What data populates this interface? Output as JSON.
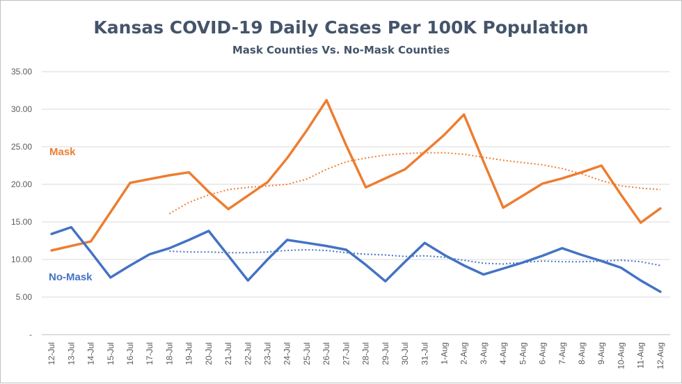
{
  "chart_data": {
    "type": "line",
    "title": "Kansas COVID-19 Daily Cases Per 100K Population",
    "subtitle": "Mask Counties Vs. No-Mask Counties",
    "xlabel": "",
    "ylabel": "",
    "ylim": [
      0,
      35
    ],
    "y_ticks": [
      "-",
      "5.00",
      "10.00",
      "15.00",
      "20.00",
      "25.00",
      "30.00",
      "35.00"
    ],
    "grid": "horizontal",
    "categories": [
      "12-Jul",
      "13-Jul",
      "14-Jul",
      "15-Jul",
      "16-Jul",
      "17-Jul",
      "18-Jul",
      "19-Jul",
      "20-Jul",
      "21-Jul",
      "22-Jul",
      "23-Jul",
      "24-Jul",
      "25-Jul",
      "26-Jul",
      "27-Jul",
      "28-Jul",
      "29-Jul",
      "30-Jul",
      "31-Jul",
      "1-Aug",
      "2-Aug",
      "3-Aug",
      "4-Aug",
      "5-Aug",
      "6-Aug",
      "7-Aug",
      "8-Aug",
      "9-Aug",
      "10-Aug",
      "11-Aug",
      "12-Aug"
    ],
    "series": [
      {
        "name": "Mask",
        "color": "#ed7d31",
        "values": [
          11.2,
          11.8,
          12.4,
          16.3,
          20.2,
          20.7,
          21.2,
          21.6,
          19.0,
          16.7,
          18.5,
          20.3,
          23.5,
          27.2,
          31.2,
          25.2,
          19.6,
          20.8,
          22.0,
          24.3,
          26.6,
          29.3,
          23.0,
          16.9,
          18.5,
          20.1,
          20.8,
          21.6,
          22.5,
          18.6,
          14.9,
          16.8
        ],
        "trend": [
          null,
          null,
          null,
          null,
          null,
          null,
          16.1,
          17.6,
          18.6,
          19.3,
          19.6,
          19.8,
          20.0,
          20.7,
          22.0,
          23.0,
          23.5,
          23.9,
          24.1,
          24.2,
          24.2,
          24.0,
          23.6,
          23.2,
          22.9,
          22.6,
          22.1,
          21.4,
          20.5,
          19.8,
          19.5,
          19.3
        ]
      },
      {
        "name": "No-Mask",
        "color": "#4472c4",
        "values": [
          13.4,
          14.3,
          11.0,
          7.6,
          9.2,
          10.7,
          11.5,
          12.6,
          13.8,
          10.5,
          7.2,
          10.0,
          12.6,
          12.2,
          11.8,
          11.3,
          9.3,
          7.1,
          9.7,
          12.2,
          10.6,
          9.2,
          8.0,
          8.8,
          9.6,
          10.5,
          11.5,
          10.6,
          9.8,
          8.9,
          7.2,
          5.7
        ],
        "trend": [
          null,
          null,
          null,
          null,
          null,
          null,
          11.1,
          11.0,
          11.0,
          10.9,
          10.9,
          11.0,
          11.2,
          11.3,
          11.2,
          10.9,
          10.7,
          10.6,
          10.4,
          10.5,
          10.3,
          9.9,
          9.5,
          9.4,
          9.6,
          9.8,
          9.7,
          9.7,
          9.8,
          9.9,
          9.7,
          9.2
        ]
      }
    ]
  }
}
